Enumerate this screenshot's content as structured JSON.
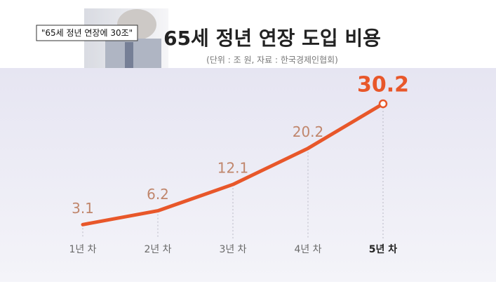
{
  "chart_data": {
    "type": "line",
    "caption": "\"65세 정년 연장에 30조\"",
    "title": "65세 정년 연장 도입 비용",
    "subtitle": "(단위 : 조 원, 자료 : 한국경제인협회)",
    "categories": [
      "1년 차",
      "2년 차",
      "3년 차",
      "4년 차",
      "5년 차"
    ],
    "series": [
      {
        "color": "#e8572a",
        "values": [
          3.1,
          6.2,
          12.1,
          20.2,
          30.2
        ]
      }
    ]
  }
}
